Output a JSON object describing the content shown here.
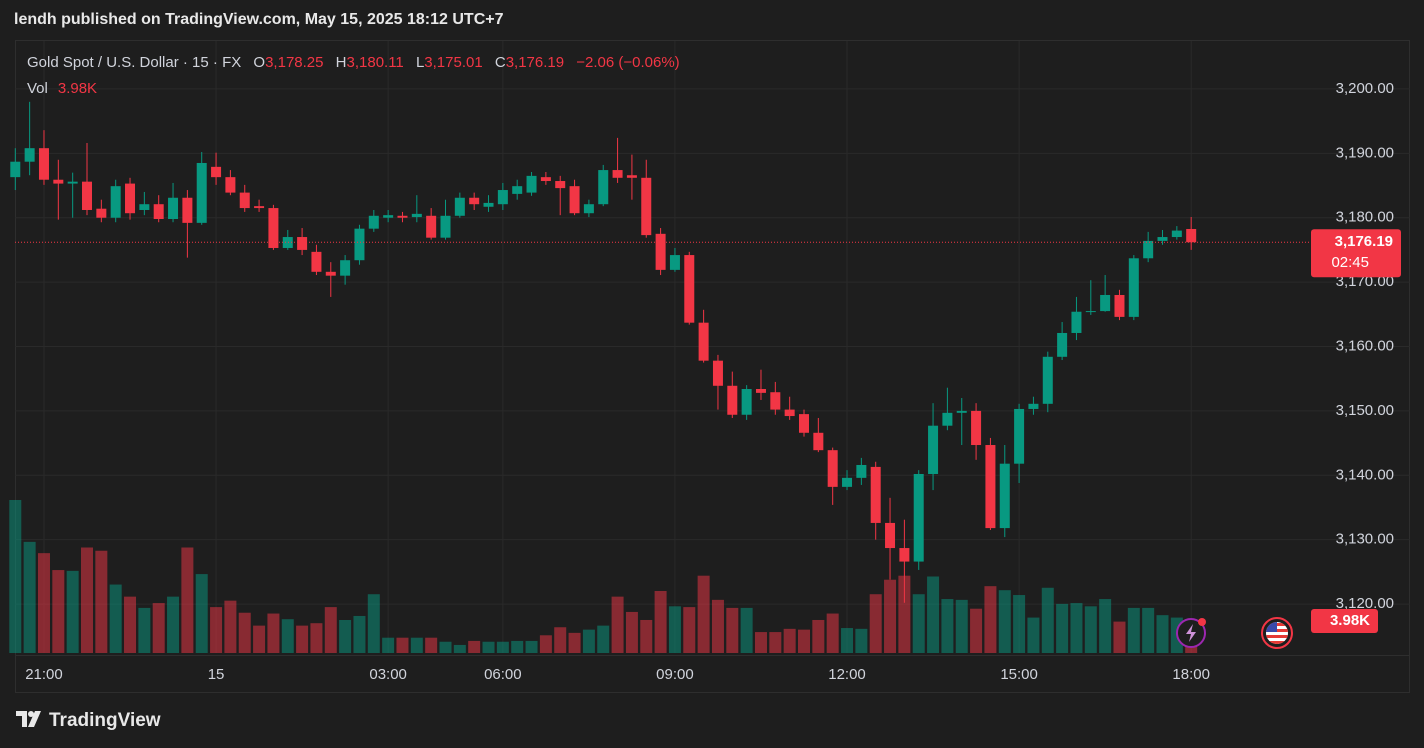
{
  "published": "lendh published on TradingView.com, May 15, 2025 18:12 UTC+7",
  "brand": "TradingView",
  "chart_data": {
    "type": "candlestick",
    "title": "Gold Spot / U.S. Dollar · 15 · FX",
    "legend": {
      "open_key": "O",
      "open": "3,178.25",
      "high_key": "H",
      "high": "3,180.11",
      "low_key": "L",
      "low": "3,175.01",
      "close_key": "C",
      "close": "3,176.19",
      "change": "−2.06 (−0.06%)",
      "volume_key": "Vol",
      "volume": "3.98K"
    },
    "countdown": "02:45",
    "colors": {
      "up": "#089981",
      "down": "#f23645"
    },
    "grid": true,
    "categories": [
      null,
      null,
      "21:00",
      null,
      null,
      null,
      null,
      null,
      null,
      null,
      null,
      null,
      null,
      null,
      "15",
      null,
      null,
      null,
      null,
      null,
      null,
      null,
      null,
      null,
      null,
      null,
      "03:00",
      null,
      null,
      null,
      null,
      null,
      null,
      null,
      "06:00",
      null,
      null,
      null,
      null,
      null,
      null,
      null,
      null,
      null,
      null,
      null,
      "09:00",
      null,
      null,
      null,
      null,
      null,
      null,
      null,
      null,
      null,
      null,
      null,
      "12:00",
      null,
      null,
      null,
      null,
      null,
      null,
      null,
      null,
      null,
      null,
      null,
      "15:00",
      null,
      null,
      null,
      null,
      null,
      null,
      null,
      null,
      null,
      null,
      null,
      "18:00"
    ],
    "open": [
      3186.3,
      3188.7,
      3190.8,
      3185.9,
      3185.3,
      3185.6,
      3181.4,
      3180.0,
      3185.3,
      3181.2,
      3182.1,
      3179.8,
      3183.1,
      3179.2,
      3187.9,
      3186.3,
      3183.9,
      3181.8,
      3181.5,
      3175.3,
      3177.0,
      3174.7,
      3171.6,
      3171.0,
      3173.4,
      3178.3,
      3180.0,
      3180.3,
      3180.1,
      3180.3,
      3176.9,
      3180.3,
      3183.1,
      3181.7,
      3182.1,
      3183.7,
      3183.9,
      3186.3,
      3185.7,
      3184.9,
      3180.7,
      3182.1,
      3187.4,
      3186.6,
      3186.2,
      3177.5,
      3171.9,
      3174.2,
      3163.7,
      3157.8,
      3153.9,
      3149.4,
      3153.4,
      3152.9,
      3150.2,
      3149.5,
      3146.6,
      3143.9,
      3138.2,
      3139.6,
      3141.3,
      3132.6,
      3128.7,
      3126.6,
      3140.2,
      3147.7,
      3149.7,
      3150.0,
      3144.7,
      3131.8,
      3141.8,
      3150.3,
      3151.1,
      3158.4,
      3162.1,
      3165.4,
      3165.5,
      3168.0,
      3164.6,
      3173.7,
      3176.4,
      3177.0,
      3178.25
    ],
    "high": [
      3190.8,
      3198.0,
      3193.6,
      3189.0,
      3187.0,
      3191.6,
      3182.8,
      3185.9,
      3186.2,
      3184.0,
      3183.5,
      3185.4,
      3184.3,
      3190.2,
      3190.1,
      3187.4,
      3185.1,
      3182.8,
      3182.0,
      3178.1,
      3178.4,
      3175.8,
      3173.1,
      3174.2,
      3178.9,
      3181.2,
      3181.2,
      3180.9,
      3183.5,
      3181.5,
      3182.8,
      3183.9,
      3183.9,
      3183.5,
      3185.4,
      3185.9,
      3187.1,
      3187.1,
      3186.5,
      3185.9,
      3182.8,
      3188.2,
      3192.4,
      3189.8,
      3189.0,
      3178.4,
      3175.3,
      3174.7,
      3165.7,
      3158.7,
      3156.1,
      3154.0,
      3156.4,
      3154.5,
      3152.2,
      3150.2,
      3148.9,
      3144.3,
      3140.8,
      3142.7,
      3142.1,
      3136.5,
      3133.1,
      3140.8,
      3151.2,
      3153.6,
      3152.0,
      3151.2,
      3145.8,
      3144.7,
      3151.1,
      3152.2,
      3159.2,
      3163.8,
      3167.7,
      3170.3,
      3171.1,
      3168.8,
      3174.2,
      3177.8,
      3178.1,
      3178.7,
      3180.11
    ],
    "low": [
      3184.3,
      3186.6,
      3185.1,
      3179.7,
      3180.0,
      3180.4,
      3179.3,
      3179.3,
      3179.7,
      3180.4,
      3179.3,
      3179.3,
      3173.8,
      3178.9,
      3185.1,
      3183.5,
      3180.9,
      3180.9,
      3175.0,
      3175.0,
      3174.2,
      3171.1,
      3167.7,
      3169.6,
      3172.7,
      3177.8,
      3179.3,
      3179.3,
      3179.3,
      3176.6,
      3176.6,
      3180.0,
      3181.2,
      3180.9,
      3181.2,
      3182.8,
      3183.4,
      3185.1,
      3180.4,
      3180.4,
      3180.1,
      3181.8,
      3185.4,
      3182.8,
      3176.9,
      3171.1,
      3171.6,
      3163.4,
      3157.5,
      3150.2,
      3148.9,
      3148.6,
      3151.7,
      3149.4,
      3148.6,
      3146.0,
      3143.6,
      3135.4,
      3137.7,
      3138.5,
      3130.0,
      3123.8,
      3120.2,
      3125.3,
      3137.7,
      3147.0,
      3144.7,
      3142.4,
      3131.5,
      3130.4,
      3138.8,
      3149.4,
      3149.8,
      3157.9,
      3161.0,
      3164.9,
      3165.4,
      3164.1,
      3164.1,
      3173.1,
      3175.8,
      3176.6,
      3175.01
    ],
    "close": [
      3188.7,
      3190.8,
      3185.9,
      3185.3,
      3185.6,
      3181.2,
      3180.0,
      3184.9,
      3180.7,
      3182.1,
      3179.8,
      3183.1,
      3179.2,
      3188.5,
      3186.3,
      3183.9,
      3181.5,
      3181.5,
      3175.3,
      3177.0,
      3175.0,
      3171.6,
      3171.0,
      3173.4,
      3178.3,
      3180.3,
      3180.4,
      3180.0,
      3180.6,
      3176.9,
      3180.3,
      3183.1,
      3182.1,
      3182.3,
      3184.3,
      3184.9,
      3186.5,
      3185.7,
      3184.6,
      3180.7,
      3182.1,
      3187.4,
      3186.2,
      3186.2,
      3177.3,
      3171.9,
      3174.2,
      3163.7,
      3157.8,
      3153.9,
      3149.4,
      3153.4,
      3152.8,
      3150.2,
      3149.2,
      3146.6,
      3143.9,
      3138.2,
      3139.6,
      3141.6,
      3132.6,
      3128.7,
      3126.6,
      3140.2,
      3147.7,
      3149.7,
      3150.0,
      3144.7,
      3131.8,
      3141.8,
      3150.3,
      3151.1,
      3158.4,
      3162.1,
      3165.4,
      3165.5,
      3168.0,
      3164.6,
      3173.7,
      3176.4,
      3177.0,
      3178.0,
      3176.19
    ],
    "volume": [
      19000,
      13800,
      12400,
      10300,
      10200,
      13100,
      12700,
      8500,
      7000,
      5600,
      6200,
      7000,
      13100,
      9800,
      5700,
      6500,
      5000,
      3400,
      4900,
      4200,
      3400,
      3700,
      5700,
      4100,
      4600,
      7300,
      1900,
      1900,
      1900,
      1900,
      1400,
      1000,
      1500,
      1400,
      1400,
      1500,
      1500,
      2200,
      3200,
      2500,
      2900,
      3400,
      7000,
      5100,
      4100,
      7700,
      5800,
      5700,
      9600,
      6600,
      5600,
      5600,
      2600,
      2600,
      3000,
      2900,
      4100,
      4900,
      3100,
      3000,
      7300,
      9100,
      9600,
      7300,
      9500,
      6700,
      6600,
      5500,
      8300,
      7800,
      7200,
      4400,
      8100,
      6100,
      6200,
      5800,
      6700,
      3900,
      5600,
      5600,
      4700,
      4400,
      3980
    ],
    "ylim": [
      3112.4,
      3207.6
    ],
    "yticks": [
      {
        "value": 3120,
        "label": "3,120.00"
      },
      {
        "value": 3130,
        "label": "3,130.00"
      },
      {
        "value": 3140,
        "label": "3,140.00"
      },
      {
        "value": 3150,
        "label": "3,150.00"
      },
      {
        "value": 3160,
        "label": "3,160.00"
      },
      {
        "value": 3170,
        "label": "3,170.00"
      },
      {
        "value": 3180,
        "label": "3,180.00"
      },
      {
        "value": 3190,
        "label": "3,190.00"
      },
      {
        "value": 3200,
        "label": "3,200.00"
      }
    ]
  }
}
